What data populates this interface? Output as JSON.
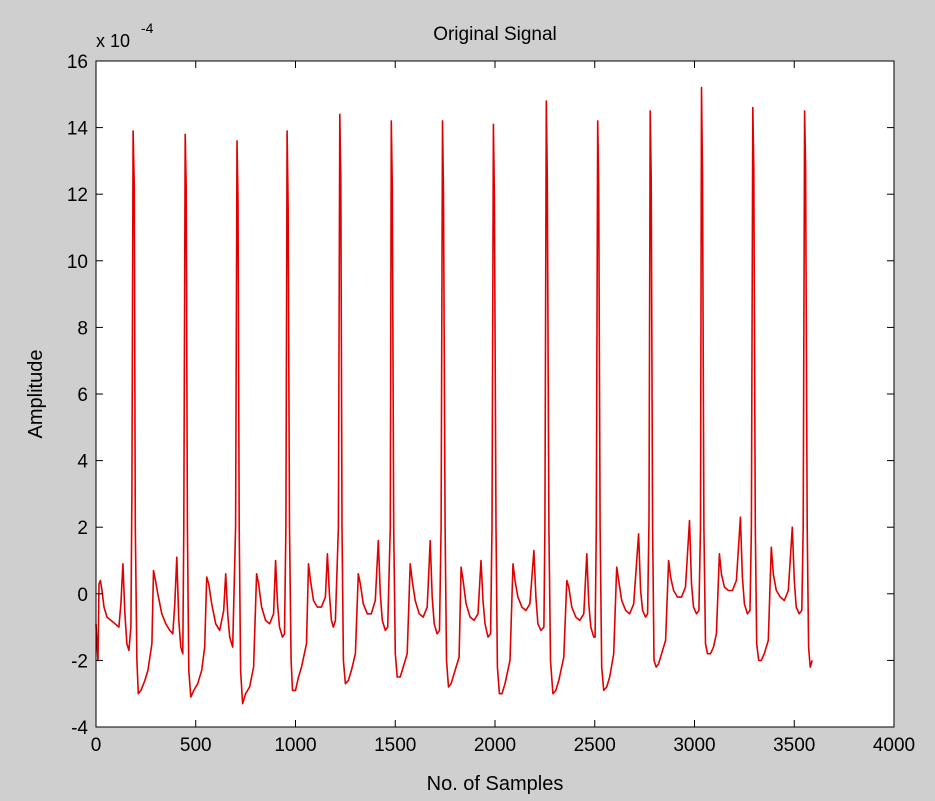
{
  "chart_data": {
    "type": "line",
    "title": "Original Signal",
    "xlabel": "No. of Samples",
    "ylabel": "Amplitude",
    "y_exponent_label": "x 10",
    "y_exponent_power": "-4",
    "xlim": [
      0,
      4000
    ],
    "ylim": [
      -4,
      16
    ],
    "x_ticks": [
      0,
      500,
      1000,
      1500,
      2000,
      2500,
      3000,
      3500,
      4000
    ],
    "y_ticks": [
      -4,
      -2,
      0,
      2,
      4,
      6,
      8,
      10,
      12,
      14,
      16
    ],
    "grid": false,
    "background_color": "#cfcfcf",
    "axes_color": "#ffffff",
    "line_color": "#e00000",
    "series": [
      {
        "points": [
          [
            0,
            -0.9
          ],
          [
            5,
            -1.5
          ],
          [
            10,
            -2.0
          ],
          [
            15,
            0.3
          ],
          [
            22,
            0.4
          ],
          [
            30,
            0.1
          ],
          [
            40,
            -0.4
          ],
          [
            55,
            -0.7
          ],
          [
            75,
            -0.8
          ],
          [
            95,
            -0.9
          ],
          [
            115,
            -1.0
          ],
          [
            125,
            -0.3
          ],
          [
            135,
            0.9
          ],
          [
            145,
            -0.6
          ],
          [
            155,
            -1.5
          ],
          [
            165,
            -1.7
          ],
          [
            175,
            -1.0
          ],
          [
            180,
            3.0
          ],
          [
            186,
            13.9
          ],
          [
            192,
            12.2
          ],
          [
            197,
            2.0
          ],
          [
            205,
            -2.0
          ],
          [
            212,
            -3.0
          ],
          [
            225,
            -2.9
          ],
          [
            245,
            -2.6
          ],
          [
            260,
            -2.3
          ],
          [
            280,
            -1.5
          ],
          [
            288,
            0.7
          ],
          [
            298,
            0.4
          ],
          [
            310,
            0.0
          ],
          [
            330,
            -0.6
          ],
          [
            350,
            -0.9
          ],
          [
            370,
            -1.1
          ],
          [
            385,
            -1.2
          ],
          [
            395,
            -0.3
          ],
          [
            405,
            1.1
          ],
          [
            415,
            -0.8
          ],
          [
            425,
            -1.6
          ],
          [
            435,
            -1.8
          ],
          [
            440,
            2.0
          ],
          [
            447,
            13.8
          ],
          [
            452,
            12.2
          ],
          [
            458,
            2.0
          ],
          [
            465,
            -2.3
          ],
          [
            475,
            -3.1
          ],
          [
            490,
            -2.9
          ],
          [
            510,
            -2.7
          ],
          [
            530,
            -2.3
          ],
          [
            545,
            -1.6
          ],
          [
            555,
            0.5
          ],
          [
            565,
            0.3
          ],
          [
            580,
            -0.3
          ],
          [
            600,
            -0.9
          ],
          [
            620,
            -1.1
          ],
          [
            640,
            -0.5
          ],
          [
            650,
            0.6
          ],
          [
            660,
            -0.6
          ],
          [
            670,
            -1.3
          ],
          [
            685,
            -1.6
          ],
          [
            700,
            2.0
          ],
          [
            707,
            13.6
          ],
          [
            712,
            11.8
          ],
          [
            718,
            2.0
          ],
          [
            725,
            -2.3
          ],
          [
            735,
            -3.3
          ],
          [
            750,
            -3.0
          ],
          [
            770,
            -2.8
          ],
          [
            790,
            -2.2
          ],
          [
            805,
            0.6
          ],
          [
            815,
            0.3
          ],
          [
            830,
            -0.4
          ],
          [
            850,
            -0.8
          ],
          [
            870,
            -0.9
          ],
          [
            890,
            -0.6
          ],
          [
            900,
            1.0
          ],
          [
            910,
            -0.3
          ],
          [
            920,
            -1.0
          ],
          [
            935,
            -1.3
          ],
          [
            945,
            -1.2
          ],
          [
            952,
            2.0
          ],
          [
            958,
            13.9
          ],
          [
            963,
            11.7
          ],
          [
            970,
            2.0
          ],
          [
            978,
            -2.0
          ],
          [
            985,
            -2.9
          ],
          [
            1000,
            -2.9
          ],
          [
            1015,
            -2.5
          ],
          [
            1030,
            -2.2
          ],
          [
            1055,
            -1.5
          ],
          [
            1065,
            0.9
          ],
          [
            1075,
            0.4
          ],
          [
            1090,
            -0.2
          ],
          [
            1110,
            -0.4
          ],
          [
            1130,
            -0.4
          ],
          [
            1150,
            -0.1
          ],
          [
            1160,
            1.2
          ],
          [
            1170,
            0.0
          ],
          [
            1180,
            -0.8
          ],
          [
            1190,
            -1.0
          ],
          [
            1200,
            -0.8
          ],
          [
            1215,
            2.0
          ],
          [
            1222,
            14.4
          ],
          [
            1227,
            12.5
          ],
          [
            1233,
            2.0
          ],
          [
            1240,
            -2.0
          ],
          [
            1250,
            -2.7
          ],
          [
            1265,
            -2.6
          ],
          [
            1280,
            -2.3
          ],
          [
            1300,
            -1.8
          ],
          [
            1315,
            0.6
          ],
          [
            1325,
            0.3
          ],
          [
            1340,
            -0.3
          ],
          [
            1360,
            -0.6
          ],
          [
            1380,
            -0.6
          ],
          [
            1400,
            -0.2
          ],
          [
            1415,
            1.6
          ],
          [
            1425,
            0.0
          ],
          [
            1435,
            -0.8
          ],
          [
            1450,
            -1.1
          ],
          [
            1462,
            -1.0
          ],
          [
            1475,
            2.0
          ],
          [
            1480,
            14.2
          ],
          [
            1485,
            12.2
          ],
          [
            1492,
            2.0
          ],
          [
            1500,
            -1.8
          ],
          [
            1510,
            -2.5
          ],
          [
            1525,
            -2.5
          ],
          [
            1540,
            -2.2
          ],
          [
            1560,
            -1.8
          ],
          [
            1575,
            0.9
          ],
          [
            1585,
            0.4
          ],
          [
            1600,
            -0.2
          ],
          [
            1620,
            -0.6
          ],
          [
            1640,
            -0.7
          ],
          [
            1660,
            -0.4
          ],
          [
            1675,
            1.6
          ],
          [
            1685,
            -0.1
          ],
          [
            1695,
            -0.9
          ],
          [
            1710,
            -1.2
          ],
          [
            1722,
            -1.1
          ],
          [
            1730,
            2.0
          ],
          [
            1737,
            14.2
          ],
          [
            1742,
            12.0
          ],
          [
            1750,
            2.0
          ],
          [
            1757,
            -2.0
          ],
          [
            1767,
            -2.8
          ],
          [
            1780,
            -2.7
          ],
          [
            1800,
            -2.3
          ],
          [
            1820,
            -1.9
          ],
          [
            1830,
            0.8
          ],
          [
            1840,
            0.4
          ],
          [
            1855,
            -0.3
          ],
          [
            1875,
            -0.7
          ],
          [
            1895,
            -0.8
          ],
          [
            1915,
            -0.6
          ],
          [
            1930,
            1.0
          ],
          [
            1940,
            -0.2
          ],
          [
            1950,
            -0.9
          ],
          [
            1965,
            -1.3
          ],
          [
            1978,
            -1.2
          ],
          [
            1985,
            2.0
          ],
          [
            1992,
            14.1
          ],
          [
            1997,
            11.9
          ],
          [
            2005,
            2.0
          ],
          [
            2012,
            -2.2
          ],
          [
            2022,
            -3.0
          ],
          [
            2035,
            -3.0
          ],
          [
            2050,
            -2.7
          ],
          [
            2075,
            -2.0
          ],
          [
            2090,
            0.9
          ],
          [
            2100,
            0.4
          ],
          [
            2115,
            -0.1
          ],
          [
            2135,
            -0.4
          ],
          [
            2155,
            -0.5
          ],
          [
            2175,
            -0.3
          ],
          [
            2195,
            1.3
          ],
          [
            2205,
            -0.1
          ],
          [
            2215,
            -0.9
          ],
          [
            2230,
            -1.1
          ],
          [
            2245,
            -1.0
          ],
          [
            2250,
            2.0
          ],
          [
            2257,
            14.8
          ],
          [
            2262,
            12.4
          ],
          [
            2270,
            2.0
          ],
          [
            2278,
            -2.0
          ],
          [
            2290,
            -3.0
          ],
          [
            2305,
            -2.9
          ],
          [
            2320,
            -2.6
          ],
          [
            2345,
            -1.9
          ],
          [
            2360,
            0.4
          ],
          [
            2370,
            0.2
          ],
          [
            2385,
            -0.4
          ],
          [
            2405,
            -0.7
          ],
          [
            2425,
            -0.8
          ],
          [
            2445,
            -0.6
          ],
          [
            2460,
            1.2
          ],
          [
            2470,
            -0.3
          ],
          [
            2480,
            -1.0
          ],
          [
            2495,
            -1.3
          ],
          [
            2502,
            -1.3
          ],
          [
            2508,
            2.0
          ],
          [
            2515,
            14.2
          ],
          [
            2520,
            12.2
          ],
          [
            2527,
            2.0
          ],
          [
            2535,
            -2.2
          ],
          [
            2545,
            -2.9
          ],
          [
            2560,
            -2.8
          ],
          [
            2575,
            -2.5
          ],
          [
            2595,
            -1.8
          ],
          [
            2610,
            0.8
          ],
          [
            2620,
            0.4
          ],
          [
            2635,
            -0.2
          ],
          [
            2655,
            -0.5
          ],
          [
            2675,
            -0.6
          ],
          [
            2695,
            -0.3
          ],
          [
            2720,
            1.8
          ],
          [
            2730,
            0.1
          ],
          [
            2740,
            -0.5
          ],
          [
            2755,
            -0.7
          ],
          [
            2765,
            -0.6
          ],
          [
            2772,
            2.2
          ],
          [
            2778,
            14.5
          ],
          [
            2783,
            12.5
          ],
          [
            2790,
            2.0
          ],
          [
            2797,
            -2.0
          ],
          [
            2808,
            -2.2
          ],
          [
            2820,
            -2.1
          ],
          [
            2835,
            -1.8
          ],
          [
            2855,
            -1.4
          ],
          [
            2870,
            1.0
          ],
          [
            2880,
            0.5
          ],
          [
            2895,
            0.1
          ],
          [
            2915,
            -0.1
          ],
          [
            2935,
            -0.1
          ],
          [
            2955,
            0.2
          ],
          [
            2975,
            2.2
          ],
          [
            2985,
            0.3
          ],
          [
            2995,
            -0.4
          ],
          [
            3010,
            -0.6
          ],
          [
            3022,
            -0.5
          ],
          [
            3030,
            2.0
          ],
          [
            3035,
            15.2
          ],
          [
            3040,
            12.6
          ],
          [
            3047,
            2.0
          ],
          [
            3055,
            -1.5
          ],
          [
            3065,
            -1.8
          ],
          [
            3080,
            -1.8
          ],
          [
            3095,
            -1.6
          ],
          [
            3110,
            -1.2
          ],
          [
            3125,
            1.2
          ],
          [
            3135,
            0.6
          ],
          [
            3150,
            0.2
          ],
          [
            3170,
            0.1
          ],
          [
            3190,
            0.1
          ],
          [
            3210,
            0.4
          ],
          [
            3230,
            2.3
          ],
          [
            3240,
            0.5
          ],
          [
            3250,
            -0.3
          ],
          [
            3265,
            -0.6
          ],
          [
            3278,
            -0.5
          ],
          [
            3285,
            2.0
          ],
          [
            3292,
            14.6
          ],
          [
            3297,
            12.8
          ],
          [
            3305,
            2.0
          ],
          [
            3312,
            -1.5
          ],
          [
            3322,
            -2.0
          ],
          [
            3335,
            -2.0
          ],
          [
            3350,
            -1.8
          ],
          [
            3370,
            -1.4
          ],
          [
            3385,
            1.4
          ],
          [
            3395,
            0.6
          ],
          [
            3410,
            0.1
          ],
          [
            3430,
            -0.1
          ],
          [
            3450,
            -0.2
          ],
          [
            3470,
            0.1
          ],
          [
            3490,
            2.0
          ],
          [
            3500,
            0.4
          ],
          [
            3510,
            -0.4
          ],
          [
            3525,
            -0.6
          ],
          [
            3538,
            -0.5
          ],
          [
            3545,
            2.0
          ],
          [
            3552,
            14.5
          ],
          [
            3557,
            12.8
          ],
          [
            3565,
            2.0
          ],
          [
            3572,
            -1.6
          ],
          [
            3580,
            -2.2
          ],
          [
            3590,
            -2.0
          ]
        ]
      }
    ]
  }
}
